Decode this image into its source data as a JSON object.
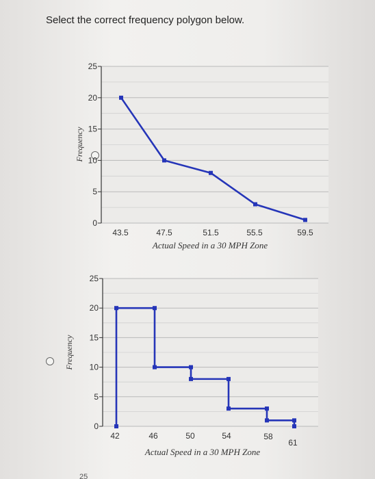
{
  "question": {
    "text": "Select the correct frequency polygon below."
  },
  "options": [
    {
      "id": "option-a",
      "selected": false
    },
    {
      "id": "option-b",
      "selected": false
    }
  ],
  "chart_data": [
    {
      "type": "line",
      "xlabel": "Actual Speed in a 30 MPH Zone",
      "ylabel": "Frequency",
      "x": [
        43.5,
        47.5,
        51.5,
        55.5,
        59.5
      ],
      "x_tick_labels": [
        "43.5",
        "47.5",
        "51.5",
        "55.5",
        "59.5"
      ],
      "series": [
        {
          "values": [
            20,
            10,
            8,
            3,
            0.5
          ]
        }
      ],
      "ylim": [
        0,
        25
      ],
      "y_ticks": [
        0,
        5,
        10,
        15,
        20,
        25
      ],
      "grid": true,
      "color": "#2535b8"
    },
    {
      "type": "line",
      "step": true,
      "xlabel": "Actual Speed in a 30 MPH Zone",
      "ylabel": "Frequency",
      "x_tick_labels": [
        "42",
        "46",
        "50",
        "54",
        "58",
        "61"
      ],
      "points": [
        [
          42,
          0
        ],
        [
          42,
          20
        ],
        [
          46,
          20
        ],
        [
          46,
          10
        ],
        [
          50,
          10
        ],
        [
          50,
          8
        ],
        [
          54,
          8
        ],
        [
          54,
          3
        ],
        [
          58,
          3
        ],
        [
          58,
          1
        ],
        [
          61,
          1
        ],
        [
          61,
          0
        ]
      ],
      "ylim": [
        0,
        25
      ],
      "y_ticks": [
        0,
        5,
        10,
        15,
        20,
        25
      ],
      "grid": true,
      "color": "#2535b8"
    }
  ],
  "footer": {
    "partial_text": "25"
  }
}
